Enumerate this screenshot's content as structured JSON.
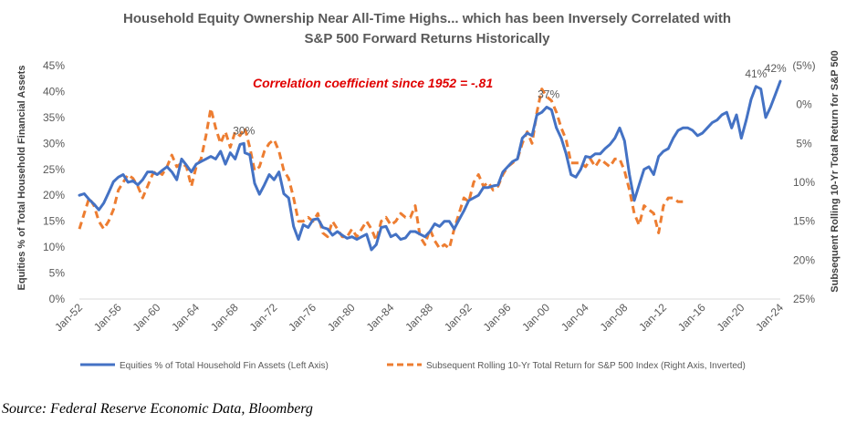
{
  "chart_data": {
    "type": "line",
    "title_lines": [
      "Household Equity Ownership Near All-Time Highs... which has been Inversely Correlated with",
      "S&P 500 Forward Returns Historically"
    ],
    "ylabel_left": "Equities % of Total Household Financial Assets",
    "ylabel_right": "Subsequent Rolling 10-Yr Total Return for S&P 500",
    "y_left_ticks": [
      "0%",
      "5%",
      "10%",
      "15%",
      "20%",
      "25%",
      "30%",
      "35%",
      "40%",
      "45%"
    ],
    "y_left_range": [
      0,
      45
    ],
    "y_right_ticks": [
      "(5%)",
      "0%",
      "5%",
      "10%",
      "15%",
      "20%",
      "25%"
    ],
    "y_right_range_inverted": [
      -5,
      25
    ],
    "x_tick_labels": [
      "Jan-52",
      "Jan-56",
      "Jan-60",
      "Jan-64",
      "Jan-68",
      "Jan-72",
      "Jan-76",
      "Jan-80",
      "Jan-84",
      "Jan-88",
      "Jan-92",
      "Jan-96",
      "Jan-00",
      "Jan-04",
      "Jan-08",
      "Jan-12",
      "Jan-16",
      "Jan-20",
      "Jan-24"
    ],
    "x_range": [
      1952,
      2024
    ],
    "annotations": [
      {
        "text": "Correlation coefficient since 1952 = -.81",
        "style": "red-bold-italic"
      },
      {
        "text": "30%",
        "x": 1968.9,
        "y": 30
      },
      {
        "text": "37%",
        "x": 2000.2,
        "y": 37
      },
      {
        "text": "41%",
        "x": 2021.5,
        "y": 41
      },
      {
        "text": "42%",
        "x": 2023.5,
        "y": 42
      }
    ],
    "series": [
      {
        "name": "Equities % of Total Household Fin Assets (Left Axis)",
        "axis": "left",
        "color": "#4472C4",
        "style": "solid",
        "points": [
          [
            1952,
            20
          ],
          [
            1952.5,
            20.3
          ],
          [
            1953,
            19.2
          ],
          [
            1953.5,
            18.3
          ],
          [
            1954,
            17.2
          ],
          [
            1954.5,
            18.5
          ],
          [
            1955,
            20.5
          ],
          [
            1955.5,
            22.6
          ],
          [
            1956,
            23.5
          ],
          [
            1956.5,
            24
          ],
          [
            1957,
            22.5
          ],
          [
            1957.5,
            22.8
          ],
          [
            1958,
            22
          ],
          [
            1958.5,
            23
          ],
          [
            1959,
            24.5
          ],
          [
            1959.5,
            24.5
          ],
          [
            1960,
            24
          ],
          [
            1960.5,
            24.8
          ],
          [
            1961,
            25.5
          ],
          [
            1961.5,
            24.5
          ],
          [
            1962,
            23
          ],
          [
            1962.5,
            27
          ],
          [
            1963,
            25.8
          ],
          [
            1963.5,
            24.5
          ],
          [
            1964,
            26
          ],
          [
            1964.5,
            26.5
          ],
          [
            1965,
            27
          ],
          [
            1965.5,
            27.5
          ],
          [
            1966,
            27
          ],
          [
            1966.5,
            28.5
          ],
          [
            1967,
            26
          ],
          [
            1967.5,
            28.2
          ],
          [
            1968,
            27
          ],
          [
            1968.5,
            29.8
          ],
          [
            1968.9,
            30
          ],
          [
            1969,
            28.2
          ],
          [
            1969.5,
            27.8
          ],
          [
            1970,
            22.3
          ],
          [
            1970.5,
            20.2
          ],
          [
            1971,
            22
          ],
          [
            1971.5,
            24
          ],
          [
            1972,
            23
          ],
          [
            1972.5,
            24.5
          ],
          [
            1973,
            20.3
          ],
          [
            1973.5,
            19.5
          ],
          [
            1974,
            14
          ],
          [
            1974.5,
            11.5
          ],
          [
            1975,
            14.3
          ],
          [
            1975.5,
            13.8
          ],
          [
            1976,
            15.3
          ],
          [
            1976.5,
            15.5
          ],
          [
            1977,
            13.8
          ],
          [
            1977.5,
            13.5
          ],
          [
            1978,
            12.3
          ],
          [
            1978.5,
            13
          ],
          [
            1979,
            12.3
          ],
          [
            1979.5,
            11.7
          ],
          [
            1980,
            12
          ],
          [
            1980.5,
            11.5
          ],
          [
            1981,
            12
          ],
          [
            1981.5,
            12.5
          ],
          [
            1982,
            9.5
          ],
          [
            1982.5,
            10.5
          ],
          [
            1983,
            13.8
          ],
          [
            1983.5,
            14
          ],
          [
            1984,
            12
          ],
          [
            1984.5,
            12.5
          ],
          [
            1985,
            11.5
          ],
          [
            1985.5,
            11.8
          ],
          [
            1986,
            13
          ],
          [
            1986.5,
            13
          ],
          [
            1987,
            12.5
          ],
          [
            1987.5,
            12
          ],
          [
            1988,
            13
          ],
          [
            1988.5,
            14.5
          ],
          [
            1989,
            14
          ],
          [
            1989.5,
            15
          ],
          [
            1990,
            15
          ],
          [
            1990.5,
            13.5
          ],
          [
            1991,
            15.3
          ],
          [
            1991.5,
            17
          ],
          [
            1992,
            19
          ],
          [
            1992.5,
            19.5
          ],
          [
            1993,
            20
          ],
          [
            1993.5,
            21.5
          ],
          [
            1994,
            21.5
          ],
          [
            1994.5,
            21.8
          ],
          [
            1995,
            22
          ],
          [
            1995.5,
            24.5
          ],
          [
            1996,
            25.5
          ],
          [
            1996.5,
            26.5
          ],
          [
            1997,
            27
          ],
          [
            1997.5,
            31
          ],
          [
            1998,
            32
          ],
          [
            1998.5,
            31.5
          ],
          [
            1999,
            35.5
          ],
          [
            1999.5,
            36
          ],
          [
            2000,
            37
          ],
          [
            2000.5,
            36.5
          ],
          [
            2001,
            33
          ],
          [
            2001.5,
            31
          ],
          [
            2002,
            28
          ],
          [
            2002.5,
            24
          ],
          [
            2003,
            23.5
          ],
          [
            2003.5,
            25
          ],
          [
            2004,
            27.5
          ],
          [
            2004.5,
            27.3
          ],
          [
            2005,
            28
          ],
          [
            2005.5,
            28
          ],
          [
            2006,
            29
          ],
          [
            2006.5,
            29.8
          ],
          [
            2007,
            31
          ],
          [
            2007.5,
            33
          ],
          [
            2008,
            30.5
          ],
          [
            2008.5,
            24
          ],
          [
            2009,
            19
          ],
          [
            2009.5,
            22
          ],
          [
            2010,
            25
          ],
          [
            2010.5,
            25.5
          ],
          [
            2011,
            24
          ],
          [
            2011.5,
            27.5
          ],
          [
            2012,
            28.5
          ],
          [
            2012.5,
            29
          ],
          [
            2013,
            31
          ],
          [
            2013.5,
            32.5
          ],
          [
            2014,
            33
          ],
          [
            2014.5,
            33
          ],
          [
            2015,
            32.5
          ],
          [
            2015.5,
            31.5
          ],
          [
            2016,
            32
          ],
          [
            2016.5,
            33
          ],
          [
            2017,
            34
          ],
          [
            2017.5,
            34.5
          ],
          [
            2018,
            35.5
          ],
          [
            2018.5,
            36
          ],
          [
            2019,
            33
          ],
          [
            2019.5,
            35.5
          ],
          [
            2020,
            31
          ],
          [
            2020.5,
            34.5
          ],
          [
            2021,
            38.5
          ],
          [
            2021.5,
            41
          ],
          [
            2022,
            40.5
          ],
          [
            2022.5,
            35
          ],
          [
            2023,
            37
          ],
          [
            2023.5,
            39.5
          ],
          [
            2024,
            42
          ]
        ]
      },
      {
        "name": "Subsequent Rolling 10-Yr Total Return for S&P 500 Index (Right Axis, Inverted)",
        "axis": "right",
        "color": "#ED7D31",
        "style": "dashed",
        "points": [
          [
            1952,
            16
          ],
          [
            1952.5,
            14
          ],
          [
            1953,
            12
          ],
          [
            1953.5,
            13
          ],
          [
            1954,
            15
          ],
          [
            1954.5,
            16
          ],
          [
            1955,
            15
          ],
          [
            1955.5,
            13.5
          ],
          [
            1956,
            11
          ],
          [
            1956.5,
            10
          ],
          [
            1957,
            9
          ],
          [
            1957.5,
            9.5
          ],
          [
            1958,
            10.5
          ],
          [
            1958.5,
            12
          ],
          [
            1959,
            10.5
          ],
          [
            1959.5,
            9
          ],
          [
            1960,
            8.5
          ],
          [
            1960.5,
            9
          ],
          [
            1961,
            8
          ],
          [
            1961.5,
            6.5
          ],
          [
            1962,
            8
          ],
          [
            1962.5,
            7.5
          ],
          [
            1963,
            8
          ],
          [
            1963.5,
            10.5
          ],
          [
            1964,
            8
          ],
          [
            1964.5,
            7
          ],
          [
            1965,
            4
          ],
          [
            1965.5,
            0.5
          ],
          [
            1966,
            3
          ],
          [
            1966.5,
            5
          ],
          [
            1967,
            3.5
          ],
          [
            1967.5,
            5.5
          ],
          [
            1968,
            3.5
          ],
          [
            1968.5,
            4
          ],
          [
            1969,
            3
          ],
          [
            1969.5,
            5.5
          ],
          [
            1970,
            8.5
          ],
          [
            1970.5,
            8
          ],
          [
            1971,
            6
          ],
          [
            1971.5,
            5
          ],
          [
            1972,
            4.5
          ],
          [
            1972.5,
            6
          ],
          [
            1973,
            8.5
          ],
          [
            1973.5,
            9.5
          ],
          [
            1974,
            12
          ],
          [
            1974.5,
            15
          ],
          [
            1975,
            15
          ],
          [
            1975.5,
            14.5
          ],
          [
            1976,
            15
          ],
          [
            1976.5,
            14
          ],
          [
            1977,
            16.5
          ],
          [
            1977.5,
            17
          ],
          [
            1978,
            15
          ],
          [
            1978.5,
            16
          ],
          [
            1979,
            17
          ],
          [
            1979.5,
            17
          ],
          [
            1980,
            16
          ],
          [
            1980.5,
            17
          ],
          [
            1981,
            16
          ],
          [
            1981.5,
            15
          ],
          [
            1982,
            16
          ],
          [
            1982.5,
            17.5
          ],
          [
            1983,
            15
          ],
          [
            1983.5,
            14.5
          ],
          [
            1984,
            15.5
          ],
          [
            1984.5,
            15
          ],
          [
            1985,
            14
          ],
          [
            1985.5,
            14.5
          ],
          [
            1986,
            14.5
          ],
          [
            1986.5,
            13
          ],
          [
            1987,
            17
          ],
          [
            1987.5,
            18
          ],
          [
            1988,
            16
          ],
          [
            1988.5,
            17.5
          ],
          [
            1989,
            18.5
          ],
          [
            1989.5,
            18
          ],
          [
            1990,
            18.5
          ],
          [
            1990.5,
            16
          ],
          [
            1991,
            14
          ],
          [
            1991.5,
            12
          ],
          [
            1992,
            12.5
          ],
          [
            1992.5,
            10
          ],
          [
            1993,
            9
          ],
          [
            1993.5,
            10.5
          ],
          [
            1994,
            10
          ],
          [
            1994.5,
            11
          ],
          [
            1995,
            10.5
          ],
          [
            1995.5,
            9
          ],
          [
            1996,
            8
          ],
          [
            1996.5,
            7.5
          ],
          [
            1997,
            7
          ],
          [
            1997.5,
            5
          ],
          [
            1998,
            3.5
          ],
          [
            1998.5,
            5
          ],
          [
            1999,
            1
          ],
          [
            1999.5,
            -2
          ],
          [
            2000,
            -1
          ],
          [
            2000.5,
            -0.5
          ],
          [
            2001,
            1
          ],
          [
            2001.5,
            3
          ],
          [
            2002,
            4.5
          ],
          [
            2002.5,
            7.5
          ],
          [
            2003,
            7.5
          ],
          [
            2003.5,
            7.5
          ],
          [
            2004,
            8
          ],
          [
            2004.5,
            7
          ],
          [
            2005,
            8
          ],
          [
            2005.5,
            7
          ],
          [
            2006,
            7.5
          ],
          [
            2006.5,
            8
          ],
          [
            2007,
            7
          ],
          [
            2007.5,
            7
          ],
          [
            2008,
            8.5
          ],
          [
            2008.5,
            11
          ],
          [
            2009,
            14
          ],
          [
            2009.5,
            15.5
          ],
          [
            2010,
            13
          ],
          [
            2010.5,
            13.5
          ],
          [
            2011,
            14
          ],
          [
            2011.5,
            16.5
          ],
          [
            2012,
            13
          ],
          [
            2012.5,
            12
          ],
          [
            2013,
            12
          ],
          [
            2013.5,
            12.5
          ],
          [
            2014,
            12.5
          ]
        ]
      }
    ]
  },
  "legend": {
    "left_label": "Equities % of Total Household Fin Assets (Left Axis)",
    "right_label": "Subsequent Rolling 10-Yr Total Return for S&P 500 Index (Right Axis, Inverted)"
  },
  "source": "Source: Federal Reserve Economic Data, Bloomberg"
}
